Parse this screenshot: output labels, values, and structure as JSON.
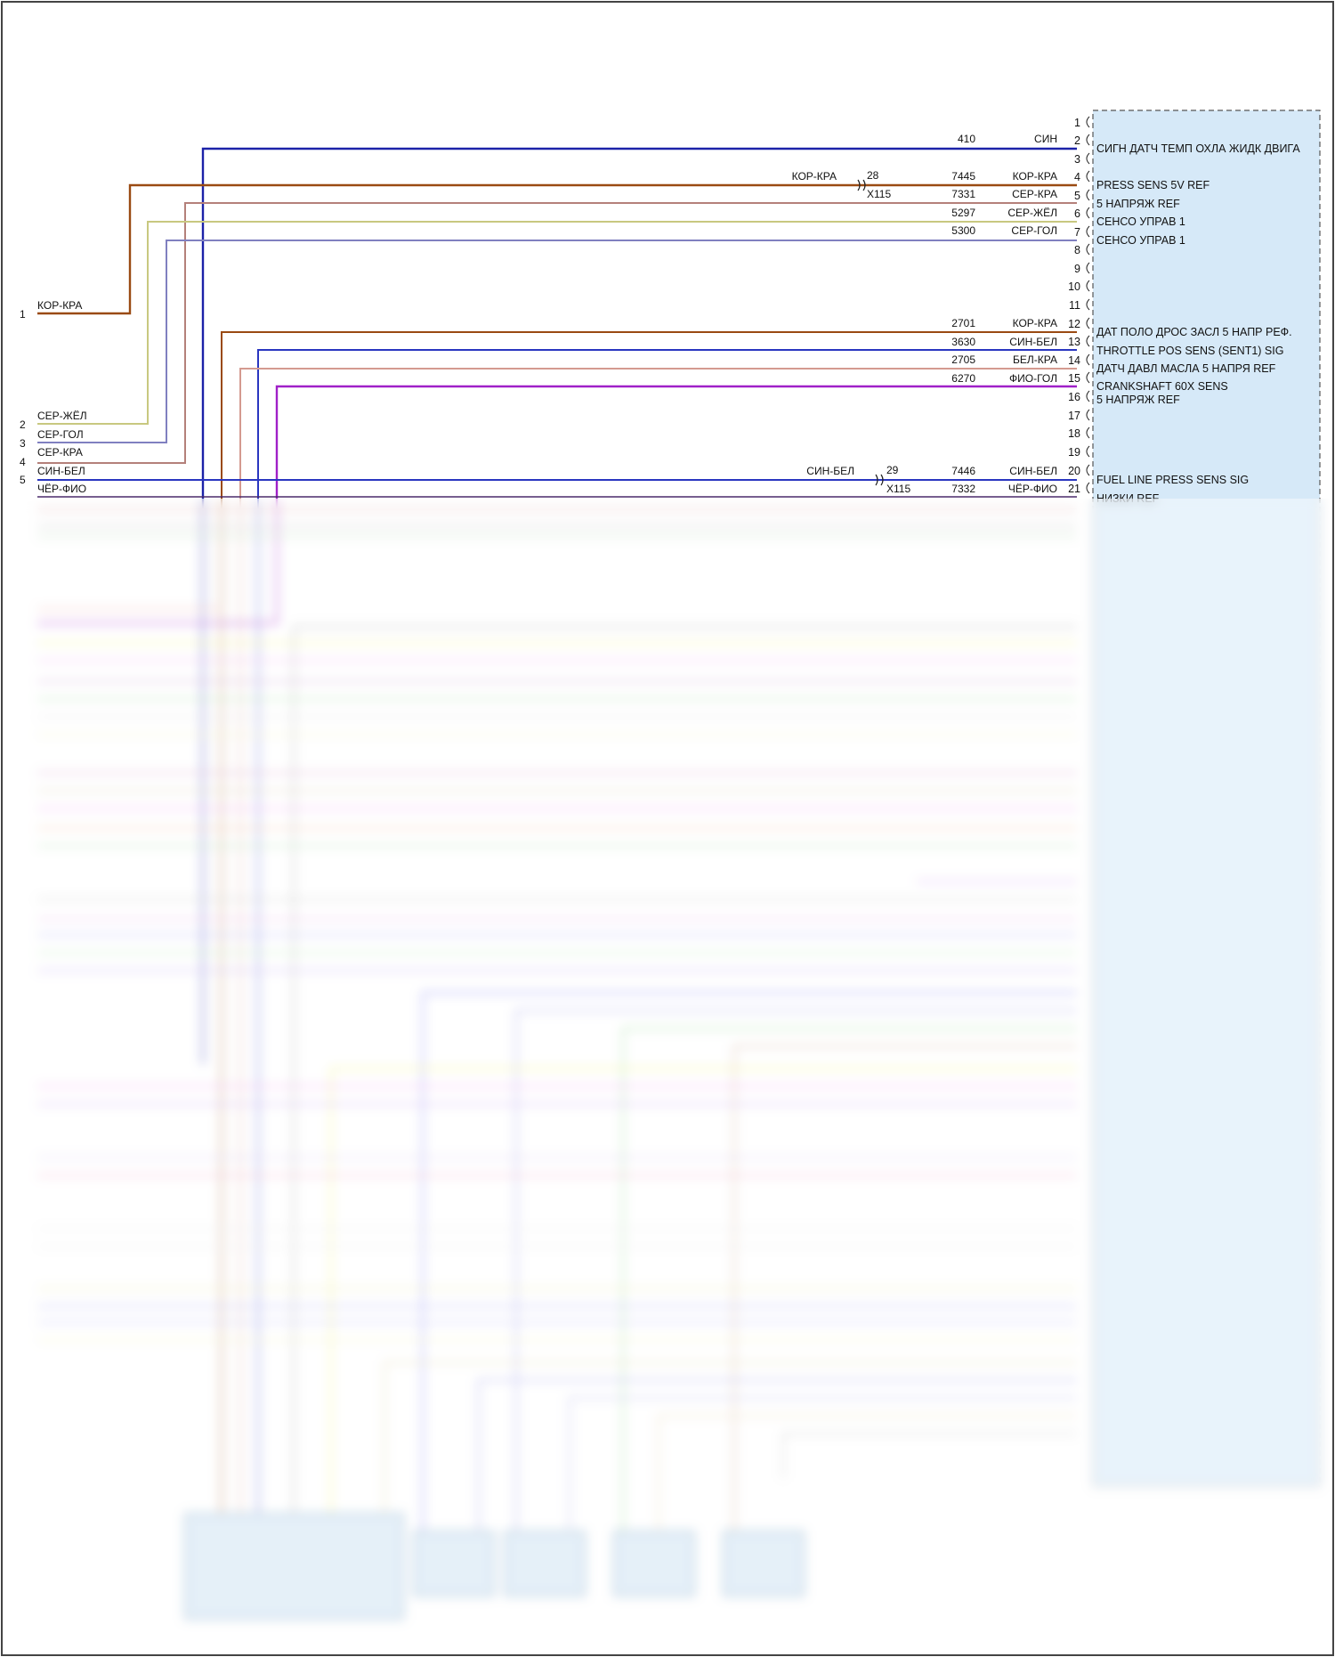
{
  "ecu": {
    "pin_numbers": [
      "1",
      "2",
      "3",
      "4",
      "5",
      "6",
      "7",
      "8",
      "9",
      "10",
      "11",
      "12",
      "13",
      "14",
      "15",
      "16",
      "17",
      "18",
      "19",
      "20",
      "21"
    ],
    "signals": [
      {
        "pin": "2",
        "label": "СИГН ДАТЧ ТЕМП ОХЛА ЖИДК ДВИГА"
      },
      {
        "pin": "4",
        "label": "PRESS SENS 5V REF"
      },
      {
        "pin": "5",
        "label": "5 НАПРЯЖ REF"
      },
      {
        "pin": "6",
        "label": "СЕНСО УПРАВ 1"
      },
      {
        "pin": "7",
        "label": "СЕНСО УПРАВ 1"
      },
      {
        "pin": "12",
        "label": "ДАТ ПОЛО ДРОС ЗАСЛ 5 НАПР РЕФ."
      },
      {
        "pin": "13",
        "label": "THROTTLE POS SENS (SENT1) SIG"
      },
      {
        "pin": "14",
        "label": "ДАТЧ ДАВЛ МАСЛА 5 НАПРЯ REF"
      },
      {
        "pin": "15",
        "label": "CRANKSHAFT 60X SENS"
      },
      {
        "pin": "16",
        "label": "5 НАПРЯЖ REF"
      },
      {
        "pin": "20",
        "label": "FUEL LINE PRESS SENS SIG"
      },
      {
        "pin": "21",
        "label": "НИЗКИ REF"
      }
    ],
    "wires": [
      {
        "pin": "2",
        "circuit": "410",
        "color_label": "СИН",
        "color": "#1c22a8"
      },
      {
        "pin": "4",
        "circuit": "7445",
        "color_label": "КОР-КРА",
        "color": "#9a4a12"
      },
      {
        "pin": "5",
        "circuit": "7331",
        "color_label": "СЕР-КРА",
        "color": "#b4807a"
      },
      {
        "pin": "6",
        "circuit": "5297",
        "color_label": "СЕР-ЖЁЛ",
        "color": "#c8c880"
      },
      {
        "pin": "7",
        "circuit": "5300",
        "color_label": "СЕР-ГОЛ",
        "color": "#8080c0"
      },
      {
        "pin": "12",
        "circuit": "2701",
        "color_label": "КОР-КРА",
        "color": "#9a4a12"
      },
      {
        "pin": "13",
        "circuit": "3630",
        "color_label": "СИН-БЕЛ",
        "color": "#2a36c0"
      },
      {
        "pin": "14",
        "circuit": "2705",
        "color_label": "БЕЛ-КРА",
        "color": "#d49a90"
      },
      {
        "pin": "15",
        "circuit": "6270",
        "color_label": "ФИО-ГОЛ",
        "color": "#a020c8"
      },
      {
        "pin": "20",
        "circuit": "7446",
        "color_label": "СИН-БЕЛ",
        "color": "#2a36c0"
      },
      {
        "pin": "21",
        "circuit": "7332",
        "color_label": "ЧЁР-ФИО",
        "color": "#4a2a6a"
      }
    ]
  },
  "connector_x115": {
    "label": "X115",
    "pins": [
      {
        "pin": "28",
        "wire_label": "КОР-КРА"
      },
      {
        "pin": "29",
        "wire_label": "СИН-БЕЛ"
      }
    ]
  },
  "left_harness": [
    {
      "num": "1",
      "label": "КОР-КРА"
    },
    {
      "num": "2",
      "label": "СЕР-ЖЁЛ"
    },
    {
      "num": "3",
      "label": "СЕР-ГОЛ"
    },
    {
      "num": "4",
      "label": "СЕР-КРА"
    },
    {
      "num": "4",
      "label": "СИН-БЕЛ"
    },
    {
      "num": "5",
      "label": "ЧЁР-ФИО"
    }
  ],
  "colors": {
    "ecu_fill": "#d6e9f8",
    "ecu_border": "#555555",
    "lower_area_blurred": true
  }
}
